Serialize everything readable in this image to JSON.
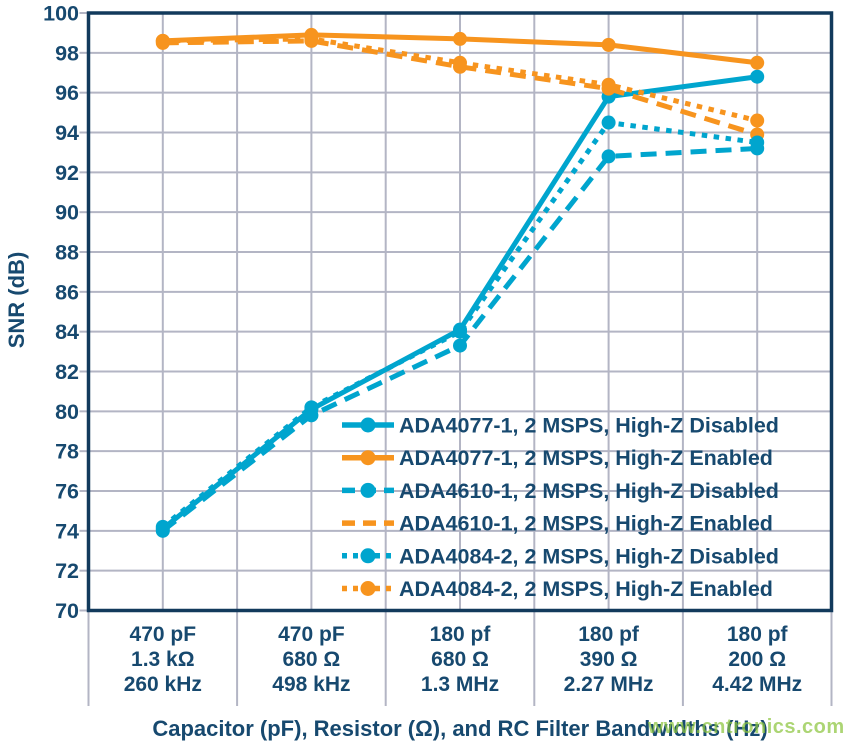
{
  "colors": {
    "cyan": "#00a5ce",
    "orange": "#f7941e",
    "text_navy": "#17496f",
    "gridline": "#b3b5c4",
    "plot_border": "#123a5c",
    "watermark_green": "#8dc63f"
  },
  "watermark": {
    "text": "www.cntronics.com"
  },
  "chart_data": {
    "type": "line",
    "title": "",
    "xlabel": "Capacitor (pF), Resistor (Ω), and RC Filter Bandwidths (Hz)",
    "ylabel": "SNR (dB)",
    "ylim": [
      70,
      100
    ],
    "ytick_step": 2,
    "yticks": [
      70,
      72,
      74,
      76,
      78,
      80,
      82,
      84,
      86,
      88,
      90,
      92,
      94,
      96,
      98,
      100
    ],
    "grid": true,
    "legend_position": "inside-bottom-right",
    "categories": [
      [
        "470 pF",
        "1.3 kΩ",
        "260 kHz"
      ],
      [
        "470 pF",
        "680 Ω",
        "498 kHz"
      ],
      [
        "180 pf",
        "680 Ω",
        "1.3 MHz"
      ],
      [
        "180 pf",
        "390 Ω",
        "2.27 MHz"
      ],
      [
        "180 pf",
        "200 Ω",
        "4.42 MHz"
      ]
    ],
    "series": [
      {
        "name": "ADA4077-1, 2 MSPS, High-Z Disabled",
        "color": "#00a5ce",
        "style": "solid",
        "legend_marker": true,
        "values": [
          74.1,
          80.1,
          84.1,
          95.8,
          96.8
        ]
      },
      {
        "name": "ADA4077-1, 2 MSPS, High-Z Enabled",
        "color": "#f7941e",
        "style": "solid",
        "legend_marker": true,
        "values": [
          98.6,
          98.9,
          98.7,
          98.4,
          97.5
        ]
      },
      {
        "name": "ADA4610-1, 2 MSPS, High-Z Disabled",
        "color": "#00a5ce",
        "style": "dashed",
        "legend_marker": true,
        "values": [
          74.0,
          79.8,
          83.3,
          92.8,
          93.2
        ]
      },
      {
        "name": "ADA4610-1, 2 MSPS, High-Z Enabled",
        "color": "#f7941e",
        "style": "dashed",
        "legend_marker": false,
        "values": [
          98.5,
          98.6,
          97.3,
          96.2,
          93.9
        ]
      },
      {
        "name": "ADA4084-2, 2 MSPS, High-Z Disabled",
        "color": "#00a5ce",
        "style": "dotted",
        "legend_marker": true,
        "values": [
          74.2,
          80.2,
          84.0,
          94.5,
          93.5
        ]
      },
      {
        "name": "ADA4084-2, 2 MSPS, High-Z Enabled",
        "color": "#f7941e",
        "style": "dotted",
        "legend_marker": true,
        "values": [
          98.6,
          98.7,
          97.5,
          96.4,
          94.6
        ]
      }
    ]
  }
}
